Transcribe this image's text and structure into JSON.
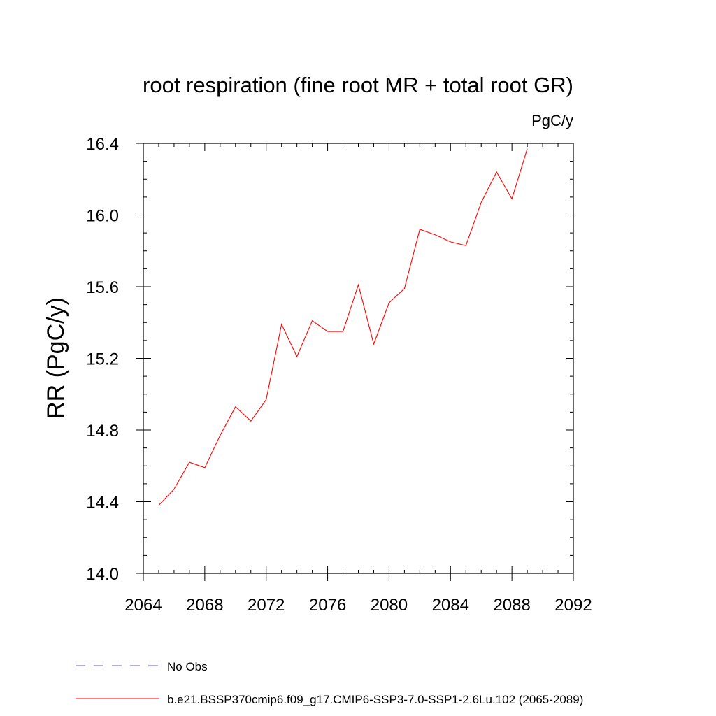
{
  "chart_data": {
    "type": "line",
    "title": "root respiration (fine root MR + total root GR)",
    "units": "PgC/y",
    "ylabel": "RR  (PgC/y)",
    "xlabel": "",
    "xlim": [
      2064,
      2092
    ],
    "ylim": [
      14.0,
      16.4
    ],
    "x_ticks": [
      2064,
      2068,
      2072,
      2076,
      2080,
      2084,
      2088,
      2092
    ],
    "x_tick_labels": [
      "2064",
      "2068",
      "2072",
      "2076",
      "2080",
      "2084",
      "2088",
      "2092"
    ],
    "y_ticks": [
      14.0,
      14.4,
      14.8,
      15.2,
      15.6,
      16.0,
      16.4
    ],
    "y_tick_labels": [
      "14.0",
      "14.4",
      "14.8",
      "15.2",
      "15.6",
      "16.0",
      "16.4"
    ],
    "grid": false,
    "legend_position": "bottom",
    "series": [
      {
        "name": "b.e21.BSSP370cmip6.f09_g17.CMIP6-SSP3-7.0-SSP1-2.6Lu.102 (2065-2089)",
        "color": "#ff0000",
        "style": "solid",
        "x": [
          2065,
          2066,
          2067,
          2068,
          2069,
          2070,
          2071,
          2072,
          2073,
          2074,
          2075,
          2076,
          2077,
          2078,
          2079,
          2080,
          2081,
          2082,
          2083,
          2084,
          2085,
          2086,
          2087,
          2088,
          2089
        ],
        "y": [
          14.38,
          14.47,
          14.62,
          14.59,
          14.77,
          14.93,
          14.85,
          14.97,
          15.39,
          15.21,
          15.41,
          15.35,
          15.35,
          15.61,
          15.28,
          15.51,
          15.59,
          15.92,
          15.89,
          15.85,
          15.83,
          16.07,
          16.24,
          16.09,
          16.37
        ]
      }
    ],
    "legend": [
      {
        "name": "No Obs",
        "color": "#6a5acd",
        "style": "dashed"
      },
      {
        "name": "b.e21.BSSP370cmip6.f09_g17.CMIP6-SSP3-7.0-SSP1-2.6Lu.102 (2065-2089)",
        "color": "#ff0000",
        "style": "solid"
      }
    ]
  }
}
